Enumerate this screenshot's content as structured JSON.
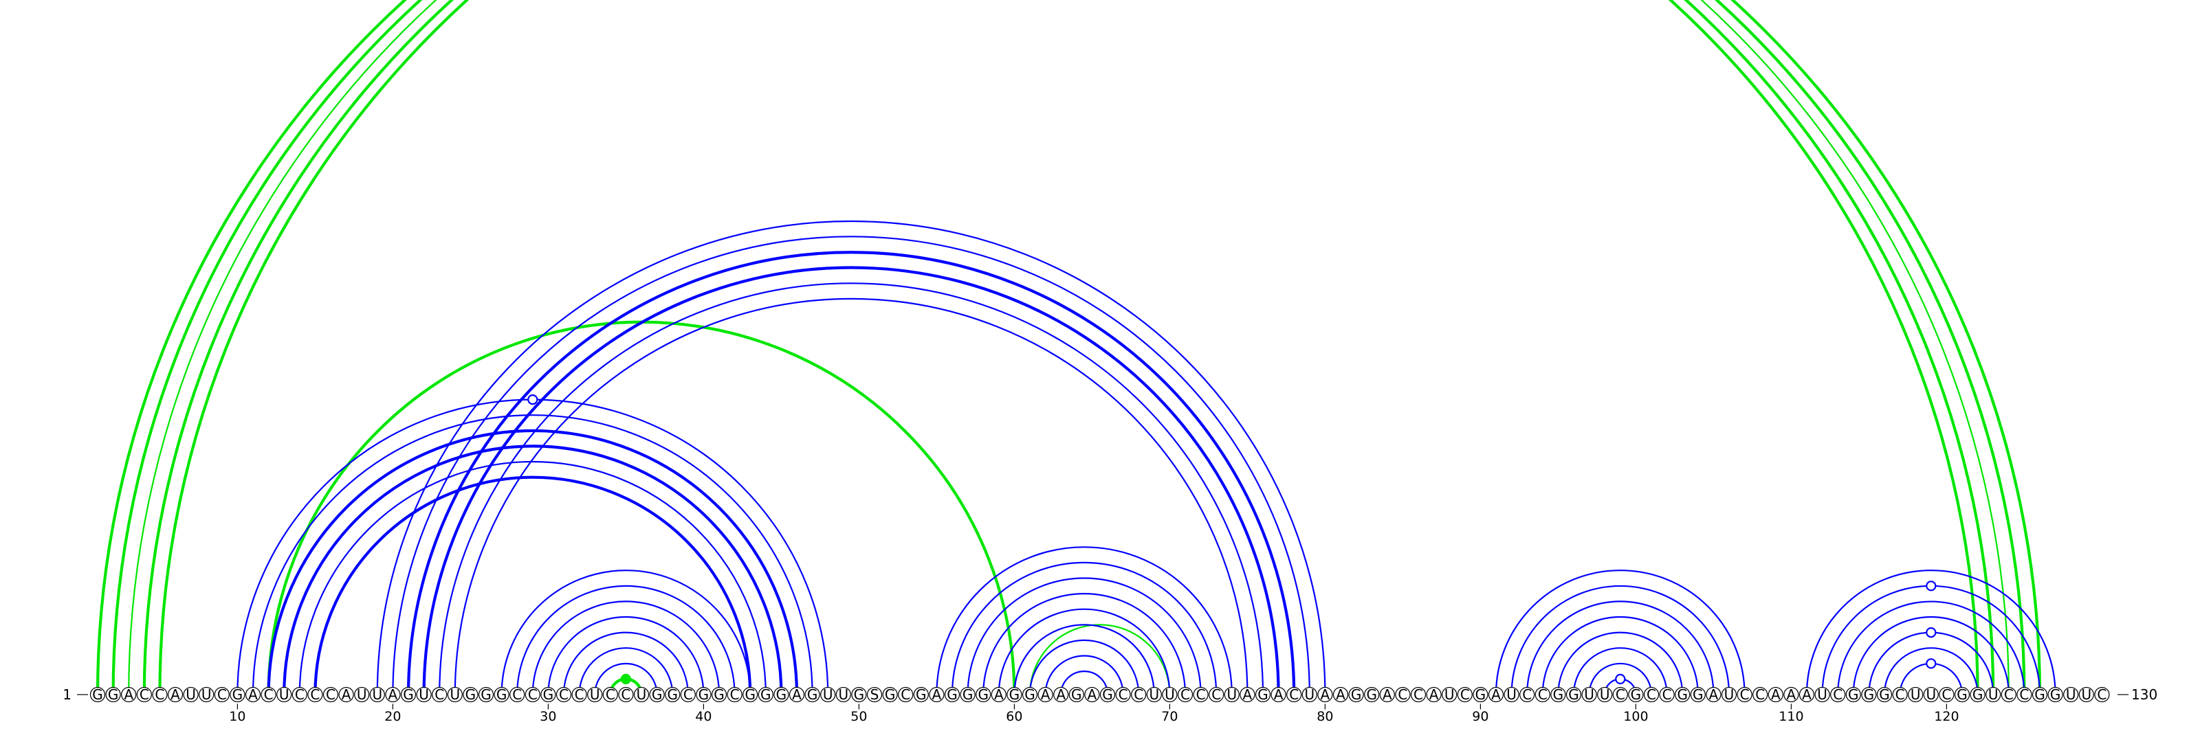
{
  "chart_data": {
    "type": "arc",
    "sequence": "GGACCAUUCGACUCCCAUUAGUCUGGGCCGCCUCCUGGCGGCGGGAGUUGSGCGAGGGAGGAAGAGCCUUCCCUAGACUAAGGACCAUCGAUCCGGUUCGCCGGAUCCAAAUCGGGCUUCGGUCCGGUUC",
    "start_label": "1",
    "end_label": "130",
    "ticks": [
      10,
      20,
      30,
      40,
      50,
      60,
      70,
      80,
      90,
      100,
      110,
      120
    ],
    "colors": {
      "canonical": "#0000ff",
      "noncanonical": "#00e600",
      "circle": "#ffffff",
      "text": "#000000"
    },
    "arcs": [
      {
        "i": 1,
        "j": 122,
        "color": "noncanonical",
        "bold": true
      },
      {
        "i": 2,
        "j": 123,
        "color": "noncanonical",
        "bold": true
      },
      {
        "i": 3,
        "j": 124,
        "color": "noncanonical",
        "bold": false
      },
      {
        "i": 4,
        "j": 125,
        "color": "noncanonical",
        "bold": true
      },
      {
        "i": 5,
        "j": 126,
        "color": "noncanonical",
        "bold": true
      },
      {
        "i": 12,
        "j": 60,
        "color": "noncanonical",
        "bold": true
      },
      {
        "i": 34,
        "j": 36,
        "color": "noncanonical",
        "bold": true,
        "marker": "filled"
      },
      {
        "i": 61,
        "j": 70,
        "color": "noncanonical",
        "bold": false
      },
      {
        "i": 10,
        "j": 48,
        "color": "canonical",
        "bold": false,
        "marker": "open"
      },
      {
        "i": 11,
        "j": 47,
        "color": "canonical",
        "bold": false
      },
      {
        "i": 12,
        "j": 46,
        "color": "canonical",
        "bold": true
      },
      {
        "i": 13,
        "j": 45,
        "color": "canonical",
        "bold": true
      },
      {
        "i": 14,
        "j": 44,
        "color": "canonical",
        "bold": false
      },
      {
        "i": 15,
        "j": 43,
        "color": "canonical",
        "bold": true
      },
      {
        "i": 19,
        "j": 80,
        "color": "canonical",
        "bold": false
      },
      {
        "i": 20,
        "j": 79,
        "color": "canonical",
        "bold": false
      },
      {
        "i": 21,
        "j": 78,
        "color": "canonical",
        "bold": true
      },
      {
        "i": 22,
        "j": 77,
        "color": "canonical",
        "bold": true
      },
      {
        "i": 23,
        "j": 76,
        "color": "canonical",
        "bold": false
      },
      {
        "i": 24,
        "j": 75,
        "color": "canonical",
        "bold": false
      },
      {
        "i": 27,
        "j": 43,
        "color": "canonical",
        "bold": false
      },
      {
        "i": 28,
        "j": 42,
        "color": "canonical",
        "bold": false
      },
      {
        "i": 29,
        "j": 41,
        "color": "canonical",
        "bold": false
      },
      {
        "i": 30,
        "j": 40,
        "color": "canonical",
        "bold": false
      },
      {
        "i": 31,
        "j": 39,
        "color": "canonical",
        "bold": false
      },
      {
        "i": 32,
        "j": 38,
        "color": "canonical",
        "bold": false
      },
      {
        "i": 33,
        "j": 37,
        "color": "canonical",
        "bold": false
      },
      {
        "i": 55,
        "j": 74,
        "color": "canonical",
        "bold": false
      },
      {
        "i": 56,
        "j": 73,
        "color": "canonical",
        "bold": false
      },
      {
        "i": 57,
        "j": 72,
        "color": "canonical",
        "bold": false
      },
      {
        "i": 58,
        "j": 71,
        "color": "canonical",
        "bold": false
      },
      {
        "i": 59,
        "j": 70,
        "color": "canonical",
        "bold": false
      },
      {
        "i": 60,
        "j": 69,
        "color": "canonical",
        "bold": false
      },
      {
        "i": 61,
        "j": 68,
        "color": "canonical",
        "bold": false
      },
      {
        "i": 62,
        "j": 67,
        "color": "canonical",
        "bold": false
      },
      {
        "i": 63,
        "j": 66,
        "color": "canonical",
        "bold": false
      },
      {
        "i": 91,
        "j": 107,
        "color": "canonical",
        "bold": false
      },
      {
        "i": 92,
        "j": 106,
        "color": "canonical",
        "bold": false
      },
      {
        "i": 93,
        "j": 105,
        "color": "canonical",
        "bold": false
      },
      {
        "i": 94,
        "j": 104,
        "color": "canonical",
        "bold": false
      },
      {
        "i": 95,
        "j": 103,
        "color": "canonical",
        "bold": false
      },
      {
        "i": 96,
        "j": 102,
        "color": "canonical",
        "bold": false
      },
      {
        "i": 97,
        "j": 101,
        "color": "canonical",
        "bold": false
      },
      {
        "i": 98,
        "j": 100,
        "color": "canonical",
        "bold": false,
        "marker": "open"
      },
      {
        "i": 111,
        "j": 127,
        "color": "canonical",
        "bold": false
      },
      {
        "i": 112,
        "j": 126,
        "color": "canonical",
        "bold": false,
        "marker": "open"
      },
      {
        "i": 113,
        "j": 125,
        "color": "canonical",
        "bold": false
      },
      {
        "i": 114,
        "j": 124,
        "color": "canonical",
        "bold": false
      },
      {
        "i": 115,
        "j": 123,
        "color": "canonical",
        "bold": false,
        "marker": "open"
      },
      {
        "i": 116,
        "j": 122,
        "color": "canonical",
        "bold": false
      },
      {
        "i": 117,
        "j": 121,
        "color": "canonical",
        "bold": false,
        "marker": "open"
      }
    ]
  }
}
